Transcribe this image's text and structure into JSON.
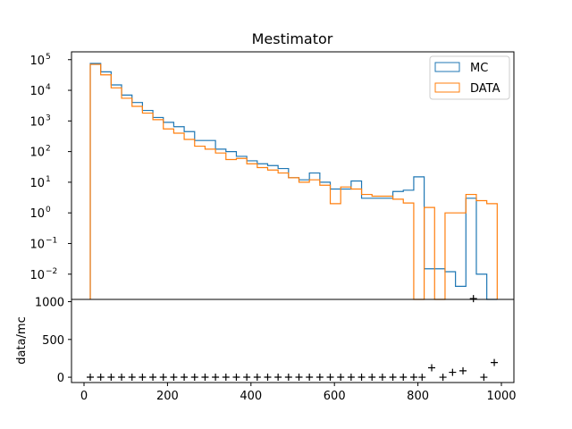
{
  "figure": {
    "title": "Mestimator"
  },
  "colors": {
    "mc": "#1f77b4",
    "data": "#ff7f0e",
    "ratio_marker": "#000000"
  },
  "chart_data": [
    {
      "type": "histogram",
      "title": "Mestimator",
      "yscale": "log",
      "xlim": [
        -30,
        1030
      ],
      "ylim": [
        0.0015,
        180000
      ],
      "yticks": [
        {
          "value": 100000,
          "base": "10",
          "exp": "5"
        },
        {
          "value": 10000,
          "base": "10",
          "exp": "4"
        },
        {
          "value": 1000,
          "base": "10",
          "exp": "3"
        },
        {
          "value": 100,
          "base": "10",
          "exp": "2"
        },
        {
          "value": 10,
          "base": "10",
          "exp": "1"
        },
        {
          "value": 1,
          "base": "10",
          "exp": "0"
        },
        {
          "value": 0.1,
          "base": "10",
          "exp": "−1"
        },
        {
          "value": 0.01,
          "base": "10",
          "exp": "−2"
        }
      ],
      "legend_position": "top-right",
      "bin_edges": [
        15,
        40,
        65,
        90,
        115,
        140,
        165,
        190,
        215,
        240,
        265,
        290,
        315,
        340,
        365,
        390,
        415,
        440,
        465,
        490,
        515,
        540,
        565,
        590,
        615,
        640,
        665,
        690,
        715,
        740,
        765,
        790,
        815,
        840,
        865,
        890,
        915,
        940,
        965,
        990
      ],
      "series": [
        {
          "name": "MC",
          "counts": [
            75000,
            40000,
            15000,
            7000,
            4000,
            2200,
            1300,
            900,
            650,
            450,
            230,
            230,
            120,
            100,
            70,
            50,
            40,
            35,
            28,
            14,
            12,
            20,
            10,
            6,
            6,
            11,
            3,
            3,
            3,
            5,
            5.5,
            15,
            0.015,
            0.015,
            0.012,
            0.004,
            3,
            0.01,
            0
          ]
        },
        {
          "name": "DATA",
          "counts": [
            70000,
            32000,
            12000,
            5500,
            3000,
            1800,
            1100,
            550,
            400,
            250,
            150,
            120,
            90,
            55,
            60,
            40,
            30,
            25,
            20,
            14,
            10,
            12,
            8,
            2,
            7,
            6,
            4,
            3.5,
            3.5,
            2.8,
            2.1,
            0.001,
            1.5,
            0.001,
            1,
            1,
            4,
            2.5,
            2
          ]
        }
      ]
    },
    {
      "type": "scatter",
      "ylabel": "data/mc",
      "xlim": [
        -30,
        1030
      ],
      "ylim": [
        -70,
        1030
      ],
      "xticks": [
        "0",
        "200",
        "400",
        "600",
        "800",
        "1000"
      ],
      "yticks": [
        "0",
        "500",
        "1000"
      ],
      "marker": "+",
      "points": [
        {
          "x": 15,
          "y": 1
        },
        {
          "x": 40,
          "y": 1
        },
        {
          "x": 65,
          "y": 1
        },
        {
          "x": 90,
          "y": 1
        },
        {
          "x": 115,
          "y": 1
        },
        {
          "x": 140,
          "y": 1
        },
        {
          "x": 165,
          "y": 1
        },
        {
          "x": 190,
          "y": 1
        },
        {
          "x": 215,
          "y": 1
        },
        {
          "x": 240,
          "y": 1
        },
        {
          "x": 265,
          "y": 1
        },
        {
          "x": 290,
          "y": 1
        },
        {
          "x": 315,
          "y": 1
        },
        {
          "x": 340,
          "y": 1
        },
        {
          "x": 365,
          "y": 1
        },
        {
          "x": 390,
          "y": 1
        },
        {
          "x": 415,
          "y": 1
        },
        {
          "x": 440,
          "y": 1
        },
        {
          "x": 465,
          "y": 1
        },
        {
          "x": 490,
          "y": 1
        },
        {
          "x": 515,
          "y": 1
        },
        {
          "x": 540,
          "y": 1
        },
        {
          "x": 565,
          "y": 1
        },
        {
          "x": 590,
          "y": 1
        },
        {
          "x": 615,
          "y": 1
        },
        {
          "x": 640,
          "y": 1
        },
        {
          "x": 665,
          "y": 1
        },
        {
          "x": 690,
          "y": 1
        },
        {
          "x": 715,
          "y": 1
        },
        {
          "x": 740,
          "y": 1
        },
        {
          "x": 765,
          "y": 1
        },
        {
          "x": 790,
          "y": 1
        },
        {
          "x": 810,
          "y": 0
        },
        {
          "x": 833,
          "y": 125
        },
        {
          "x": 860,
          "y": 0
        },
        {
          "x": 883,
          "y": 65
        },
        {
          "x": 908,
          "y": 85
        },
        {
          "x": 933,
          "y": 1040
        },
        {
          "x": 958,
          "y": 0
        },
        {
          "x": 983,
          "y": 195
        }
      ]
    }
  ]
}
